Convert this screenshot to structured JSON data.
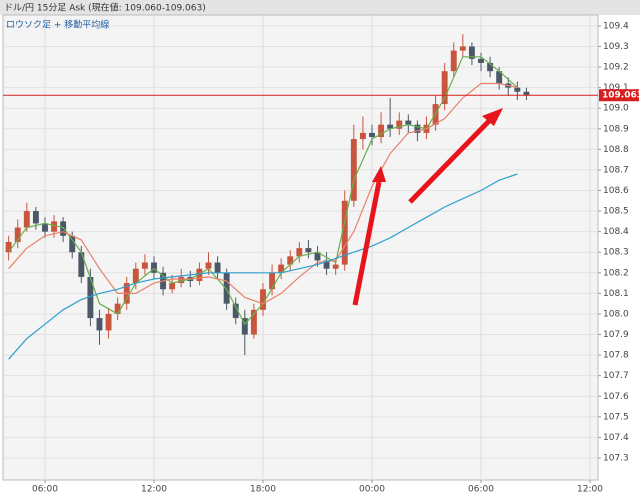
{
  "chart_data": {
    "type": "candlestick",
    "title": "ドル/円 15分足 Ask (現在値: 109.060-109.063)",
    "subtitle": "ロウソク足 + 移動平均線",
    "x": [
      4.0,
      4.5,
      5.0,
      5.5,
      6.0,
      6.5,
      7.0,
      7.5,
      8.0,
      8.5,
      9.0,
      9.5,
      10.0,
      10.5,
      11.0,
      11.5,
      12.0,
      12.5,
      13.0,
      13.5,
      14.0,
      14.5,
      15.0,
      15.5,
      16.0,
      16.5,
      17.0,
      17.5,
      18.0,
      18.5,
      19.0,
      19.5,
      20.0,
      20.5,
      21.0,
      21.5,
      22.0,
      22.5,
      23.0,
      23.5,
      24.0,
      24.5,
      25.0,
      25.5,
      26.0,
      26.5,
      27.0,
      27.5,
      28.0,
      28.5,
      29.0,
      29.5,
      30.0,
      30.5,
      31.0,
      31.5,
      32.0,
      32.5
    ],
    "open": [
      108.3,
      108.35,
      108.42,
      108.5,
      108.44,
      108.4,
      108.45,
      108.38,
      108.3,
      108.18,
      107.98,
      107.92,
      108.0,
      108.05,
      108.15,
      108.22,
      108.25,
      108.2,
      108.12,
      108.15,
      108.18,
      108.16,
      108.22,
      108.25,
      108.2,
      108.05,
      107.98,
      107.9,
      108.02,
      108.12,
      108.2,
      108.24,
      108.28,
      108.32,
      108.3,
      108.26,
      108.22,
      108.24,
      108.55,
      108.85,
      108.88,
      108.86,
      108.92,
      108.9,
      108.94,
      108.92,
      108.88,
      108.92,
      109.02,
      109.18,
      109.28,
      109.3,
      109.24,
      109.22,
      109.18,
      109.12,
      109.1,
      109.08
    ],
    "high": [
      108.38,
      108.46,
      108.54,
      108.52,
      108.47,
      108.48,
      108.47,
      108.4,
      108.33,
      108.22,
      108.02,
      108.03,
      108.08,
      108.18,
      108.25,
      108.29,
      108.28,
      108.23,
      108.19,
      108.22,
      108.21,
      108.25,
      108.3,
      108.28,
      108.22,
      108.08,
      108.02,
      108.05,
      108.15,
      108.24,
      108.27,
      108.31,
      108.35,
      108.36,
      108.33,
      108.3,
      108.27,
      108.6,
      108.92,
      108.96,
      108.92,
      108.98,
      109.05,
      108.98,
      108.97,
      108.94,
      108.96,
      109.06,
      109.22,
      109.32,
      109.36,
      109.32,
      109.27,
      109.25,
      109.2,
      109.15,
      109.13,
      109.1
    ],
    "low": [
      108.26,
      108.32,
      108.4,
      108.41,
      108.37,
      108.37,
      108.35,
      108.27,
      108.15,
      107.94,
      107.85,
      107.88,
      107.97,
      108.02,
      108.12,
      108.19,
      108.17,
      108.09,
      108.1,
      108.13,
      108.13,
      108.14,
      108.19,
      108.17,
      108.02,
      107.95,
      107.8,
      107.88,
      107.99,
      108.09,
      108.17,
      108.21,
      108.25,
      108.27,
      108.23,
      108.19,
      108.19,
      108.21,
      108.52,
      108.8,
      108.82,
      108.83,
      108.86,
      108.87,
      108.88,
      108.84,
      108.85,
      108.89,
      108.99,
      109.15,
      109.25,
      109.21,
      109.18,
      109.15,
      109.09,
      109.06,
      109.04,
      109.04
    ],
    "close": [
      108.35,
      108.42,
      108.5,
      108.44,
      108.4,
      108.45,
      108.38,
      108.3,
      108.18,
      107.98,
      107.92,
      108.0,
      108.05,
      108.15,
      108.22,
      108.25,
      108.2,
      108.12,
      108.15,
      108.18,
      108.16,
      108.22,
      108.25,
      108.2,
      108.05,
      107.98,
      107.9,
      108.02,
      108.12,
      108.2,
      108.24,
      108.28,
      108.32,
      108.3,
      108.26,
      108.22,
      108.24,
      108.55,
      108.85,
      108.88,
      108.86,
      108.92,
      108.9,
      108.94,
      108.92,
      108.88,
      108.92,
      109.02,
      109.18,
      109.28,
      109.3,
      109.24,
      109.22,
      109.18,
      109.12,
      109.1,
      109.08,
      109.063
    ],
    "up_color": "#c8553d",
    "down_color": "#4a5868",
    "lines": [
      {
        "color": "#6ab04c",
        "x": [
          4,
          5,
          6,
          7,
          8,
          9,
          10,
          11,
          12,
          13,
          14,
          15,
          16,
          17,
          18,
          19,
          20,
          21,
          22,
          23,
          24,
          25,
          26,
          27,
          28,
          29,
          30,
          31,
          32
        ],
        "values": [
          108.3,
          108.42,
          108.44,
          108.42,
          108.3,
          108.05,
          108.0,
          108.15,
          108.22,
          108.15,
          108.17,
          108.22,
          108.12,
          107.95,
          108.05,
          108.2,
          108.28,
          108.3,
          108.25,
          108.65,
          108.85,
          108.9,
          108.92,
          108.9,
          109.05,
          109.25,
          109.25,
          109.18,
          109.1
        ]
      },
      {
        "color": "#e8826a",
        "x": [
          4,
          5,
          6,
          7,
          8,
          9,
          10,
          11,
          12,
          13,
          14,
          15,
          16,
          17,
          18,
          19,
          20,
          21,
          22,
          23,
          24,
          25,
          26,
          27,
          28,
          29,
          30,
          31,
          32
        ],
        "values": [
          108.22,
          108.32,
          108.38,
          108.4,
          108.36,
          108.22,
          108.1,
          108.1,
          108.15,
          108.17,
          108.17,
          108.18,
          108.16,
          108.08,
          108.05,
          108.1,
          108.18,
          108.25,
          108.26,
          108.4,
          108.62,
          108.78,
          108.88,
          108.9,
          108.95,
          109.05,
          109.12,
          109.12,
          109.1
        ]
      },
      {
        "color": "#2e9fd0",
        "x": [
          4,
          5,
          6,
          7,
          8,
          9,
          10,
          11,
          12,
          13,
          14,
          15,
          16,
          17,
          18,
          19,
          20,
          21,
          22,
          23,
          24,
          25,
          26,
          27,
          28,
          29,
          30,
          31,
          32
        ],
        "values": [
          107.78,
          107.88,
          107.95,
          108.02,
          108.07,
          108.1,
          108.12,
          108.15,
          108.17,
          108.18,
          108.19,
          108.2,
          108.2,
          108.2,
          108.2,
          108.2,
          108.22,
          108.24,
          108.27,
          108.3,
          108.33,
          108.37,
          108.42,
          108.47,
          108.52,
          108.56,
          108.6,
          108.65,
          108.68
        ]
      }
    ],
    "current_price": 109.063,
    "current_color": "#d81e1e",
    "xlim": [
      3.69,
      36.44
    ],
    "xticks": [
      {
        "value": 6,
        "label": "06:00"
      },
      {
        "value": 12,
        "label": "12:00"
      },
      {
        "value": 18,
        "label": "18:00"
      },
      {
        "value": 24,
        "label": "00:00"
      },
      {
        "value": 30,
        "label": "06:00"
      },
      {
        "value": 36,
        "label": "12:00"
      }
    ],
    "ylim": [
      107.193,
      109.453
    ],
    "yticks": [
      107.3,
      107.4,
      107.5,
      107.6,
      107.7,
      107.8,
      107.9,
      {
        "value": 108,
        "label": "108.0"
      },
      108.1,
      108.2,
      108.3,
      108.4,
      108.5,
      108.6,
      108.7,
      108.8,
      108.9,
      {
        "value": 109,
        "label": "109.0"
      },
      109.1,
      109.2,
      109.3,
      109.4
    ],
    "grid": true
  }
}
